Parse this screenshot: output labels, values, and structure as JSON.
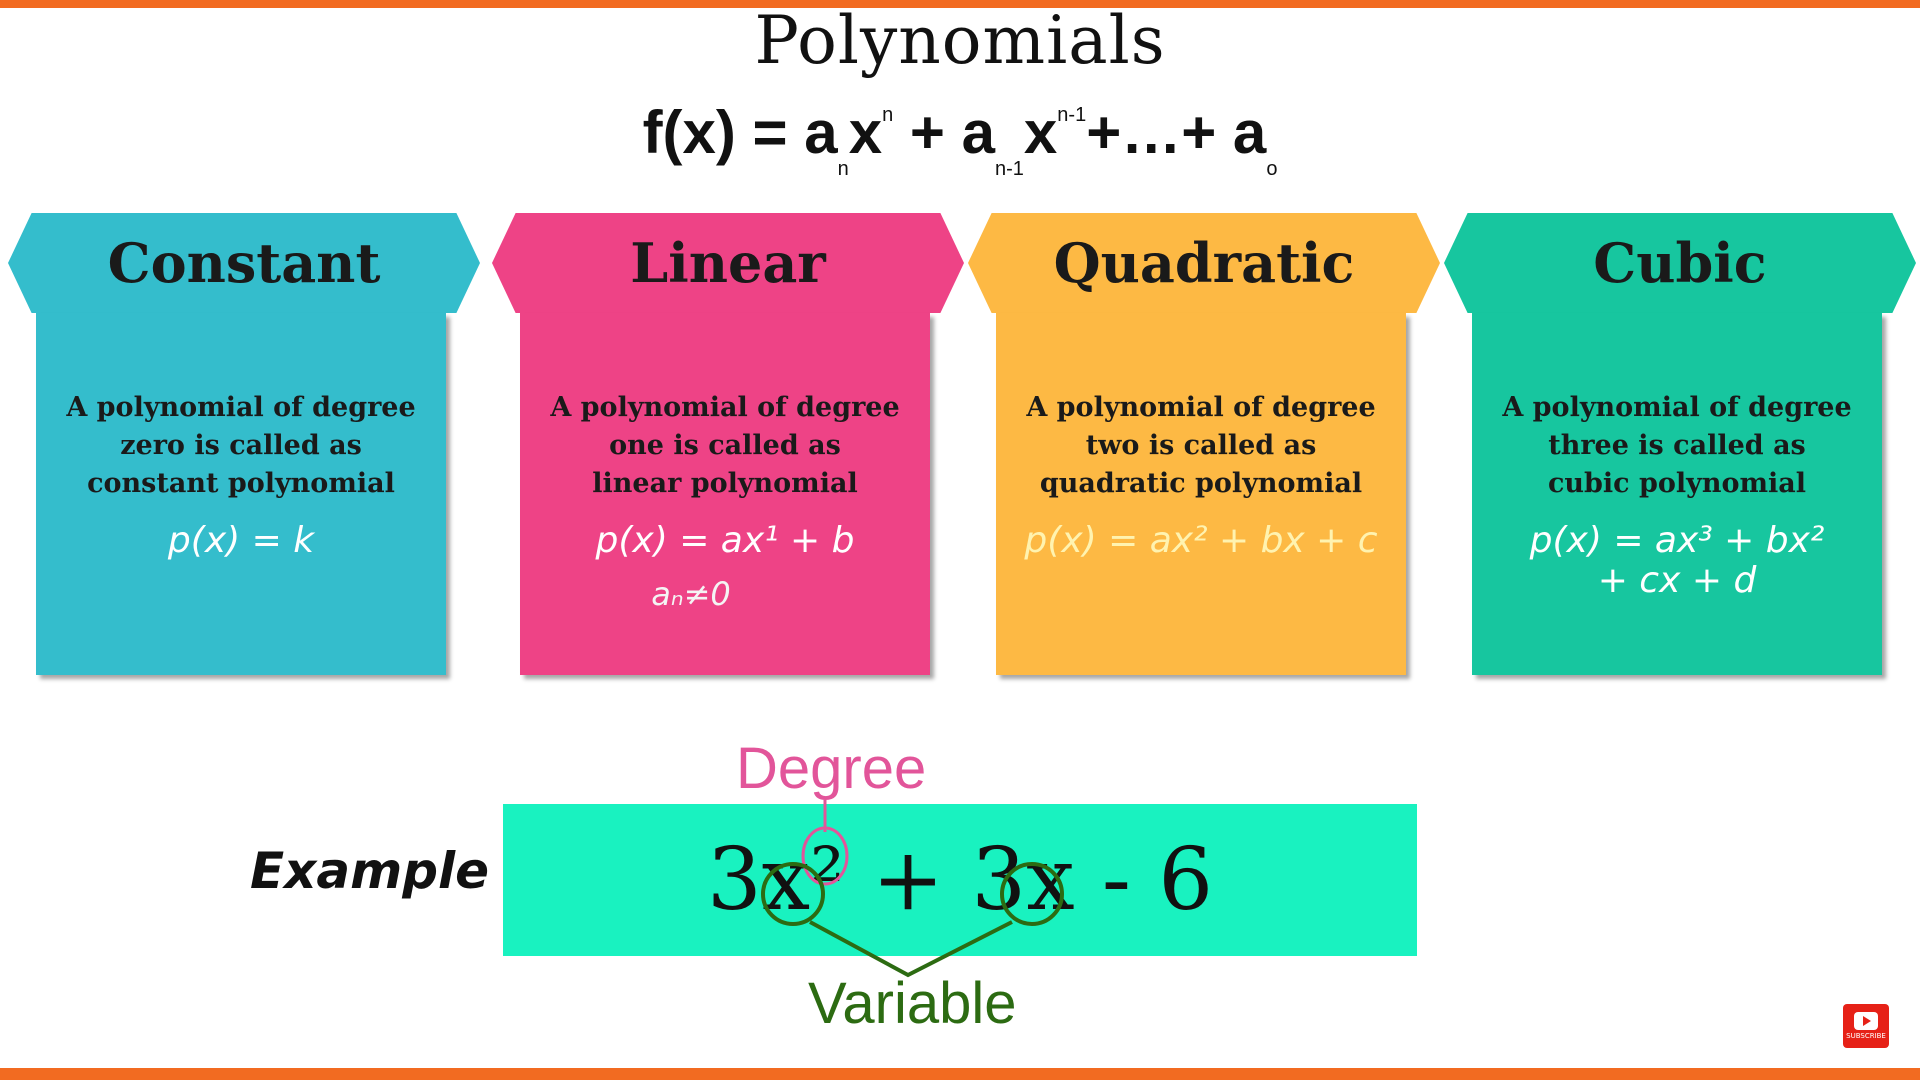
{
  "title": "Polynomials",
  "formula": {
    "lhs": "f(x) = a",
    "sub_n": "n",
    "x1": "x",
    "sup_n": "n",
    "plus1": " +  a",
    "sub_n1": "n-1",
    "x2": "x",
    "sup_n1": "n-1",
    "tail": "+…+ a",
    "sub_0": "o"
  },
  "cards": [
    {
      "title": "Constant",
      "color": "#34bdcc",
      "description": "A polynomial of degree\nzero is called as\nconstant polynomial",
      "equation": "p(x) = k",
      "equation_color": "#ffffff",
      "note": ""
    },
    {
      "title": "Linear",
      "color": "#ee4386",
      "description": "A polynomial of degree\none is called as\nlinear polynomial",
      "equation": "p(x) = ax¹ + b",
      "equation_color": "#ffffff",
      "note": "aₙ≠0"
    },
    {
      "title": "Quadratic",
      "color": "#fdb944",
      "description": "A polynomial of degree\ntwo is called as\nquadratic polynomial",
      "equation": "p(x) = ax² + bx + c",
      "equation_color": "#fff3b0",
      "note": ""
    },
    {
      "title": "Cubic",
      "color": "#17c69f",
      "description": "A polynomial of degree\nthree is called as\ncubic polynomial",
      "equation": "p(x) = ax³ + bx²\n+ cx + d",
      "equation_color": "#ffffff",
      "note": ""
    }
  ],
  "example": {
    "label": "Example",
    "expression": "3x² + 3x - 6",
    "degree_label": "Degree",
    "variable_label": "Variable",
    "box_color": "#19f2c0"
  },
  "subscribe_icon": {
    "icon": "youtube-subscribe-icon",
    "text": "SUBSCRIBE"
  }
}
